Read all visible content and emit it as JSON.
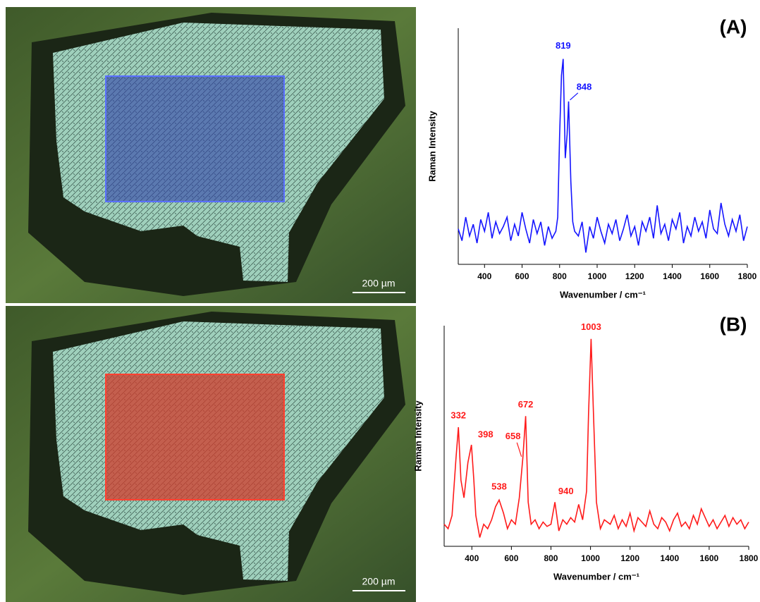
{
  "images": [
    {
      "scale_bar": "200 µm"
    },
    {
      "scale_bar": "200 µm"
    }
  ],
  "chart_data": [
    {
      "type": "line",
      "panel": "(A)",
      "y_label": "Raman Intensity",
      "x_label": "Wavenumber / cm⁻¹",
      "color": "#1515ff",
      "xlim": [
        260,
        1800
      ],
      "ylim": [
        0,
        100
      ],
      "xticks": [
        400,
        600,
        800,
        1000,
        1200,
        1400,
        1600,
        1800
      ],
      "x": [
        260,
        280,
        300,
        320,
        340,
        360,
        380,
        400,
        420,
        440,
        460,
        480,
        500,
        520,
        540,
        560,
        580,
        600,
        620,
        640,
        660,
        680,
        700,
        720,
        740,
        760,
        780,
        790,
        800,
        810,
        819,
        830,
        840,
        848,
        860,
        870,
        880,
        900,
        920,
        940,
        960,
        980,
        1000,
        1020,
        1040,
        1060,
        1080,
        1100,
        1120,
        1140,
        1160,
        1180,
        1200,
        1220,
        1240,
        1260,
        1280,
        1300,
        1320,
        1340,
        1360,
        1380,
        1400,
        1420,
        1440,
        1460,
        1480,
        1500,
        1520,
        1540,
        1560,
        1580,
        1600,
        1620,
        1640,
        1660,
        1680,
        1700,
        1720,
        1740,
        1760,
        1780,
        1800
      ],
      "values": [
        15,
        10,
        20,
        12,
        17,
        9,
        19,
        14,
        22,
        11,
        18,
        13,
        16,
        20,
        10,
        17,
        12,
        22,
        15,
        9,
        19,
        13,
        18,
        8,
        16,
        11,
        14,
        20,
        55,
        80,
        87,
        45,
        55,
        69,
        35,
        18,
        14,
        12,
        18,
        5,
        16,
        11,
        20,
        14,
        9,
        17,
        13,
        19,
        10,
        15,
        21,
        12,
        16,
        8,
        18,
        14,
        20,
        11,
        25,
        13,
        17,
        10,
        19,
        15,
        22,
        9,
        16,
        12,
        20,
        14,
        18,
        11,
        23,
        15,
        13,
        26,
        17,
        12,
        19,
        14,
        21,
        10,
        16
      ],
      "annotations": [
        {
          "text": "819",
          "x": 819
        },
        {
          "text": "848",
          "x": 848
        }
      ]
    },
    {
      "type": "line",
      "panel": "(B)",
      "y_label": "Raman Intensity",
      "x_label": "Wavenumber / cm⁻¹",
      "color": "#ff1a1a",
      "xlim": [
        260,
        1800
      ],
      "ylim": [
        0,
        100
      ],
      "xticks": [
        400,
        600,
        800,
        1000,
        1200,
        1400,
        1600,
        1800
      ],
      "x": [
        260,
        280,
        300,
        320,
        332,
        345,
        360,
        380,
        398,
        410,
        420,
        440,
        460,
        480,
        500,
        520,
        538,
        560,
        580,
        600,
        620,
        640,
        658,
        672,
        685,
        700,
        720,
        740,
        760,
        780,
        800,
        820,
        840,
        860,
        880,
        900,
        920,
        940,
        960,
        980,
        990,
        1003,
        1015,
        1030,
        1050,
        1070,
        1100,
        1120,
        1140,
        1160,
        1180,
        1200,
        1220,
        1240,
        1260,
        1280,
        1300,
        1320,
        1340,
        1360,
        1380,
        1400,
        1420,
        1440,
        1460,
        1480,
        1500,
        1520,
        1540,
        1560,
        1580,
        1600,
        1620,
        1640,
        1660,
        1680,
        1700,
        1720,
        1740,
        1760,
        1780,
        1800
      ],
      "values": [
        10,
        8,
        14,
        40,
        54,
        30,
        22,
        38,
        46,
        30,
        14,
        4,
        10,
        8,
        12,
        18,
        21,
        15,
        8,
        12,
        10,
        22,
        40,
        59,
        20,
        10,
        12,
        8,
        11,
        9,
        10,
        20,
        7,
        12,
        10,
        13,
        11,
        19,
        12,
        25,
        60,
        94,
        60,
        20,
        8,
        12,
        10,
        14,
        8,
        12,
        9,
        15,
        7,
        13,
        11,
        9,
        16,
        10,
        8,
        13,
        11,
        7,
        12,
        15,
        9,
        11,
        8,
        14,
        10,
        17,
        13,
        9,
        12,
        8,
        11,
        14,
        9,
        13,
        10,
        12,
        8,
        11
      ],
      "annotations": [
        {
          "text": "332",
          "x": 332
        },
        {
          "text": "398",
          "x": 398
        },
        {
          "text": "538",
          "x": 538
        },
        {
          "text": "658",
          "x": 658
        },
        {
          "text": "672",
          "x": 672
        },
        {
          "text": "940",
          "x": 940
        },
        {
          "text": "1003",
          "x": 1003
        }
      ]
    }
  ]
}
